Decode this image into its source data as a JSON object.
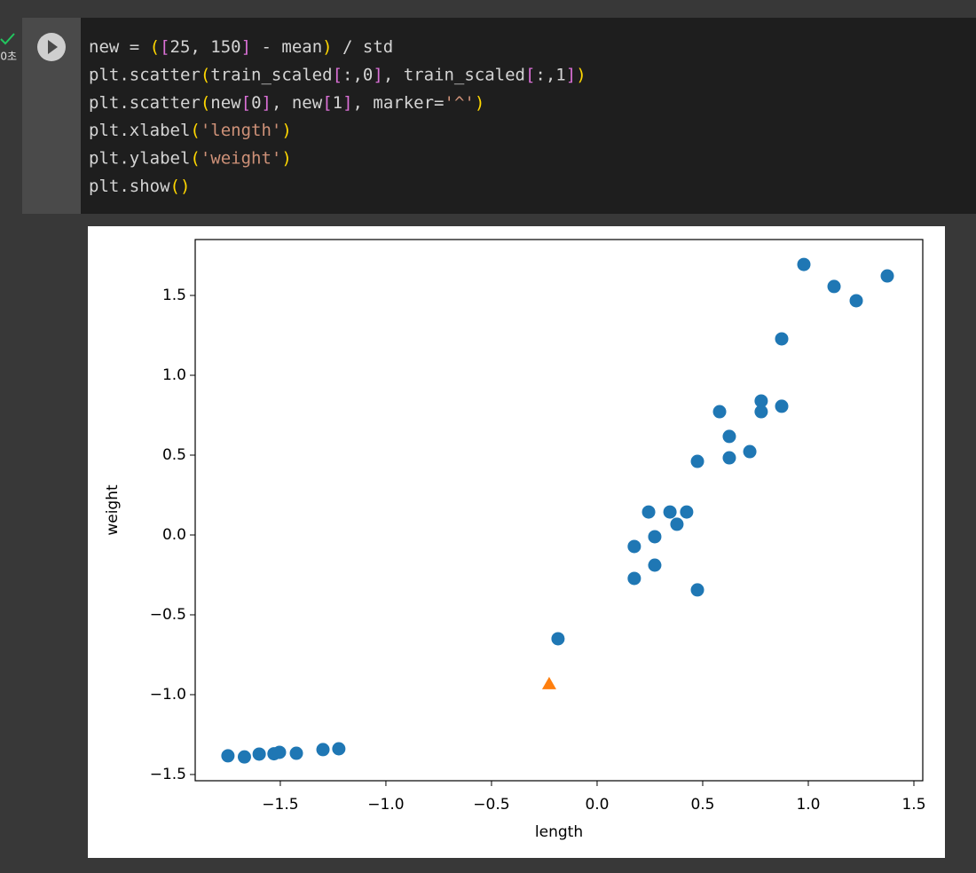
{
  "gutter": {
    "elapsed": "0초"
  },
  "code": {
    "lines": [
      [
        {
          "text": "new = ",
          "color": "#d4d4d4"
        },
        {
          "text": "(",
          "color": "#ffd700"
        },
        {
          "text": "[",
          "color": "#da70d6"
        },
        {
          "text": "25, 150",
          "color": "#d4d4d4"
        },
        {
          "text": "]",
          "color": "#da70d6"
        },
        {
          "text": " - mean",
          "color": "#d4d4d4"
        },
        {
          "text": ")",
          "color": "#ffd700"
        },
        {
          "text": " / std",
          "color": "#d4d4d4"
        }
      ],
      [
        {
          "text": "plt.scatter",
          "color": "#d4d4d4"
        },
        {
          "text": "(",
          "color": "#ffd700"
        },
        {
          "text": "train_scaled",
          "color": "#d4d4d4"
        },
        {
          "text": "[",
          "color": "#da70d6"
        },
        {
          "text": ":,0",
          "color": "#d4d4d4"
        },
        {
          "text": "]",
          "color": "#da70d6"
        },
        {
          "text": ", train_scaled",
          "color": "#d4d4d4"
        },
        {
          "text": "[",
          "color": "#da70d6"
        },
        {
          "text": ":,1",
          "color": "#d4d4d4"
        },
        {
          "text": "]",
          "color": "#da70d6"
        },
        {
          "text": ")",
          "color": "#ffd700"
        }
      ],
      [
        {
          "text": "plt.scatter",
          "color": "#d4d4d4"
        },
        {
          "text": "(",
          "color": "#ffd700"
        },
        {
          "text": "new",
          "color": "#d4d4d4"
        },
        {
          "text": "[",
          "color": "#da70d6"
        },
        {
          "text": "0",
          "color": "#d4d4d4"
        },
        {
          "text": "]",
          "color": "#da70d6"
        },
        {
          "text": ", new",
          "color": "#d4d4d4"
        },
        {
          "text": "[",
          "color": "#da70d6"
        },
        {
          "text": "1",
          "color": "#d4d4d4"
        },
        {
          "text": "]",
          "color": "#da70d6"
        },
        {
          "text": ", marker=",
          "color": "#d4d4d4"
        },
        {
          "text": "'^'",
          "color": "#ce9178"
        },
        {
          "text": ")",
          "color": "#ffd700"
        }
      ],
      [
        {
          "text": "plt.xlabel",
          "color": "#d4d4d4"
        },
        {
          "text": "(",
          "color": "#ffd700"
        },
        {
          "text": "'length'",
          "color": "#ce9178"
        },
        {
          "text": ")",
          "color": "#ffd700"
        }
      ],
      [
        {
          "text": "plt.ylabel",
          "color": "#d4d4d4"
        },
        {
          "text": "(",
          "color": "#ffd700"
        },
        {
          "text": "'weight'",
          "color": "#ce9178"
        },
        {
          "text": ")",
          "color": "#ffd700"
        }
      ],
      [
        {
          "text": "plt.show",
          "color": "#d4d4d4"
        },
        {
          "text": "()",
          "color": "#ffd700"
        }
      ]
    ]
  },
  "chart_data": {
    "type": "scatter",
    "xlabel": "length",
    "ylabel": "weight",
    "xlim": [
      -1.903,
      1.542
    ],
    "ylim": [
      -1.539,
      1.85
    ],
    "xticks": [
      {
        "value": -1.5,
        "label": "−1.5"
      },
      {
        "value": -1.0,
        "label": "−1.0"
      },
      {
        "value": -0.5,
        "label": "−0.5"
      },
      {
        "value": 0,
        "label": "0.0"
      },
      0.5,
      {
        "value": 1.0,
        "label": "1.0"
      },
      1.5
    ],
    "yticks": [
      {
        "value": -1.5,
        "label": "−1.5"
      },
      {
        "value": -1.0,
        "label": "−1.0"
      },
      {
        "value": -0.5,
        "label": "−0.5"
      },
      {
        "value": 0,
        "label": "0.0"
      },
      0.5,
      {
        "value": 1.0,
        "label": "1.0"
      },
      1.5
    ],
    "series": [
      {
        "color": "#1f77b4",
        "marker": "o",
        "x": [
          -1.748,
          -1.67,
          -1.6,
          -1.53,
          -1.504,
          -1.424,
          -1.298,
          -1.223,
          -0.185,
          0.176,
          0.176,
          0.244,
          0.273,
          0.273,
          0.345,
          0.378,
          0.424,
          0.475,
          0.475,
          0.58,
          0.626,
          0.626,
          0.723,
          0.777,
          0.777,
          0.874,
          0.874,
          0.979,
          1.122,
          1.227,
          1.374
        ],
        "values": [
          -1.383,
          -1.39,
          -1.372,
          -1.37,
          -1.361,
          -1.367,
          -1.344,
          -1.339,
          -0.65,
          -0.072,
          -0.272,
          0.144,
          -0.011,
          -0.189,
          0.144,
          0.067,
          0.144,
          0.461,
          -0.344,
          0.772,
          0.617,
          0.483,
          0.522,
          0.839,
          0.772,
          1.228,
          0.806,
          1.694,
          1.556,
          1.467,
          1.622
        ]
      },
      {
        "color": "#ff7f0e",
        "marker": "^",
        "x": [
          -0.227
        ],
        "values": [
          -0.933
        ]
      }
    ]
  }
}
